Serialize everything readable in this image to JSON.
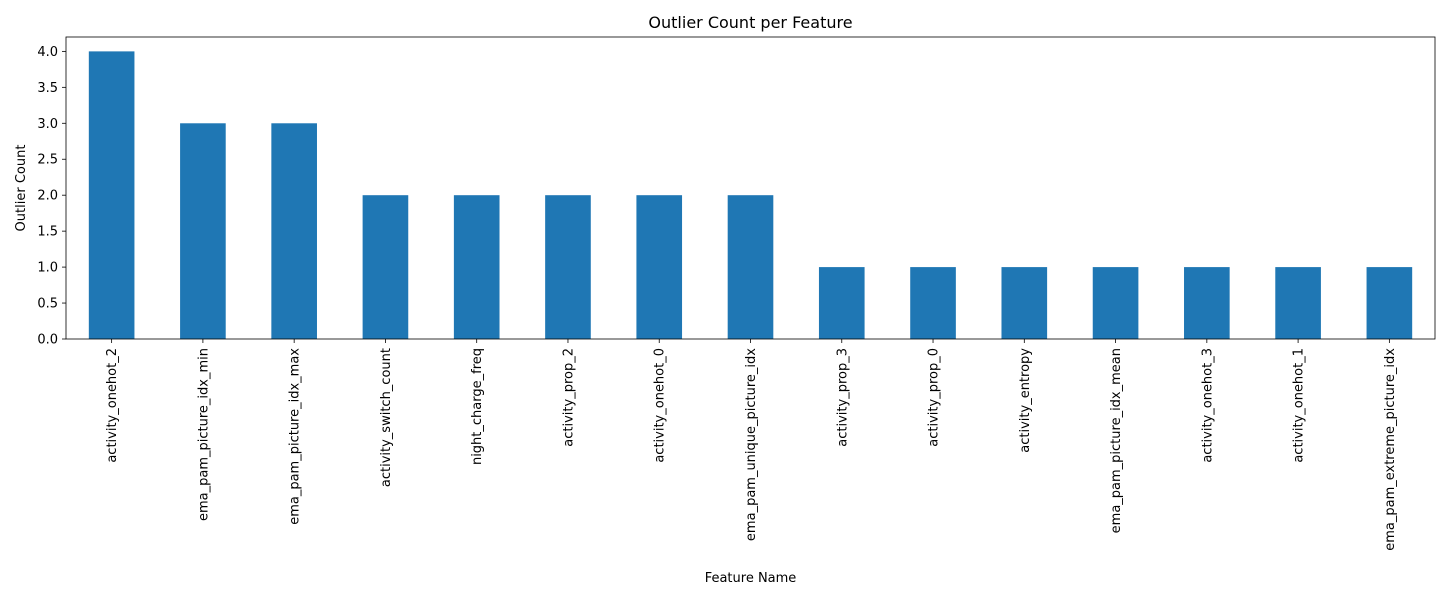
{
  "chart_data": {
    "type": "bar",
    "title": "Outlier Count per Feature",
    "xlabel": "Feature Name",
    "ylabel": "Outlier Count",
    "categories": [
      "activity_onehot_2",
      "ema_pam_picture_idx_min",
      "ema_pam_picture_idx_max",
      "activity_switch_count",
      "night_charge_freq",
      "activity_prop_2",
      "activity_onehot_0",
      "ema_pam_unique_picture_idx",
      "activity_prop_3",
      "activity_prop_0",
      "activity_entropy",
      "ema_pam_picture_idx_mean",
      "activity_onehot_3",
      "activity_onehot_1",
      "ema_pam_extreme_picture_idx"
    ],
    "values": [
      4,
      3,
      3,
      2,
      2,
      2,
      2,
      2,
      1,
      1,
      1,
      1,
      1,
      1,
      1
    ],
    "ylim": [
      0,
      4.2
    ],
    "yticks": [
      "0.0",
      "0.5",
      "1.0",
      "1.5",
      "2.0",
      "2.5",
      "3.0",
      "3.5",
      "4.0"
    ],
    "bar_color": "#1f77b4",
    "grid": false,
    "legend": false
  }
}
